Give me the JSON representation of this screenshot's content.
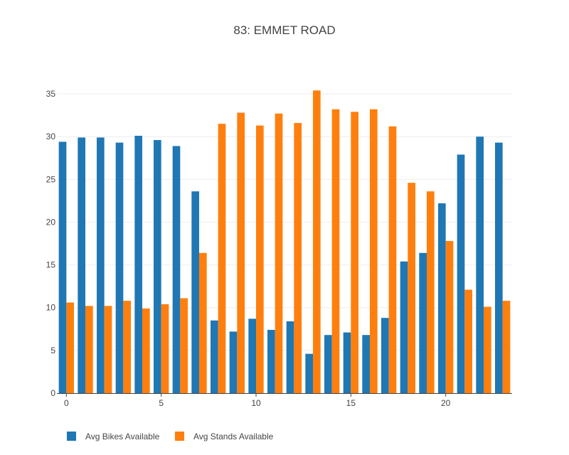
{
  "chart_data": {
    "type": "bar",
    "title": "83: EMMET ROAD",
    "xlabel": "",
    "ylabel": "",
    "x": [
      0,
      1,
      2,
      3,
      4,
      5,
      6,
      7,
      8,
      9,
      10,
      11,
      12,
      13,
      14,
      15,
      16,
      17,
      18,
      19,
      20,
      21,
      22,
      23
    ],
    "xlim": [
      -0.5,
      23.5
    ],
    "ylim": [
      0,
      37
    ],
    "xticks": [
      0,
      5,
      10,
      15,
      20
    ],
    "yticks": [
      0,
      5,
      10,
      15,
      20,
      25,
      30,
      35
    ],
    "grid": true,
    "legend_position": "bottom-left",
    "series": [
      {
        "name": "Avg Bikes Available",
        "color": "#1f77b4",
        "values": [
          29.4,
          29.9,
          29.9,
          29.3,
          30.1,
          29.6,
          28.9,
          23.6,
          8.5,
          7.2,
          8.7,
          7.4,
          8.4,
          4.6,
          6.8,
          7.1,
          6.8,
          8.8,
          15.4,
          16.4,
          22.2,
          27.9,
          30.0,
          29.3
        ]
      },
      {
        "name": "Avg Stands Available",
        "color": "#ff7f0e",
        "values": [
          10.6,
          10.2,
          10.2,
          10.8,
          9.9,
          10.4,
          11.1,
          16.4,
          31.5,
          32.8,
          31.3,
          32.7,
          31.6,
          35.4,
          33.2,
          32.9,
          33.2,
          31.2,
          24.6,
          23.6,
          17.8,
          12.1,
          10.1,
          10.8
        ]
      }
    ]
  }
}
